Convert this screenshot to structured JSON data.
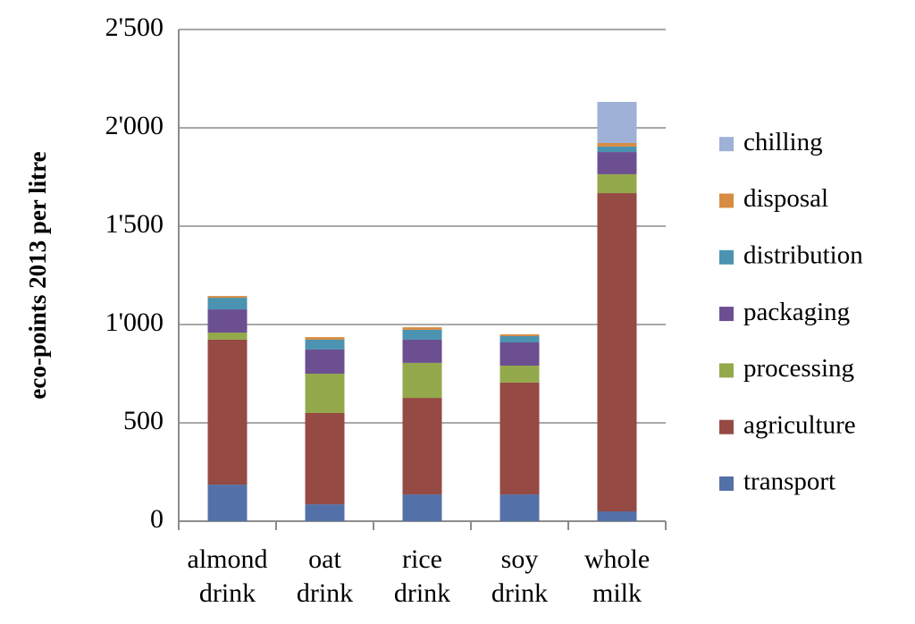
{
  "chart_data": {
    "type": "stacked_bar",
    "y_label": "eco-points 2013 per litre",
    "categories": [
      "almond drink",
      "oat drink",
      "rice drink",
      "soy drink",
      "whole milk"
    ],
    "series": [
      {
        "name": "transport",
        "color": "#5470a8",
        "values": [
          186,
          86,
          136,
          136,
          50
        ]
      },
      {
        "name": "agriculture",
        "color": "#954a43",
        "values": [
          737,
          464,
          491,
          569,
          1618
        ]
      },
      {
        "name": "processing",
        "color": "#93a94c",
        "values": [
          36,
          200,
          178,
          86,
          96
        ]
      },
      {
        "name": "packaging",
        "color": "#6b4f91",
        "values": [
          118,
          123,
          118,
          118,
          113
        ]
      },
      {
        "name": "distribution",
        "color": "#4b93b0",
        "values": [
          59,
          50,
          50,
          32,
          28
        ]
      },
      {
        "name": "disposal",
        "color": "#d68c42",
        "values": [
          9,
          13,
          13,
          9,
          18
        ]
      },
      {
        "name": "chilling",
        "color": "#9fb1d6",
        "values": [
          0,
          0,
          0,
          0,
          209
        ]
      }
    ],
    "ylim": [
      0,
      2500
    ],
    "yticks": [
      0,
      500,
      {
        "value": 1000,
        "label": "1'000"
      },
      {
        "value": 1500,
        "label": "1'500"
      },
      {
        "value": 2000,
        "label": "2'000"
      },
      {
        "value": 2500,
        "label": "2'500"
      }
    ],
    "grid": true,
    "legend": "right"
  }
}
